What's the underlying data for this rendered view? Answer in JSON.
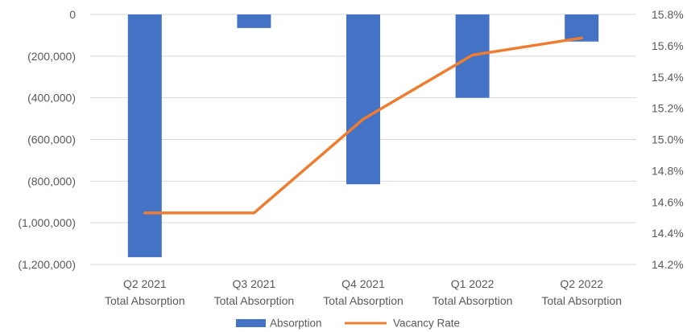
{
  "chart_data": {
    "type": "bar",
    "categories": [
      [
        "Q2 2021",
        "Total Absorption"
      ],
      [
        "Q3 2021",
        "Total Absorption"
      ],
      [
        "Q4 2021",
        "Total Absorption"
      ],
      [
        "Q1 2022",
        "Total Absorption"
      ],
      [
        "Q2 2022",
        "Total Absorption"
      ]
    ],
    "series": [
      {
        "name": "Absorption",
        "type": "bar",
        "axis": "left",
        "color": "#4472C4",
        "values": [
          -1165000,
          -65000,
          -815000,
          -400000,
          -130000
        ]
      },
      {
        "name": "Vacancy Rate",
        "type": "line",
        "axis": "right",
        "color": "#ED7D31",
        "values": [
          14.53,
          14.53,
          15.13,
          15.54,
          15.65
        ]
      }
    ],
    "y_left": {
      "min": -1200000,
      "max": 0,
      "step": 200000,
      "tick_labels": [
        "0",
        "(200,000)",
        "(400,000)",
        "(600,000)",
        "(800,000)",
        "(1,000,000)",
        "(1,200,000)"
      ]
    },
    "y_right": {
      "min": 14.2,
      "max": 15.8,
      "step": 0.2,
      "tick_labels": [
        "15.8%",
        "15.6%",
        "15.4%",
        "15.2%",
        "15.0%",
        "14.8%",
        "14.6%",
        "14.4%",
        "14.2%"
      ]
    },
    "grid": true,
    "legend_position": "bottom"
  }
}
